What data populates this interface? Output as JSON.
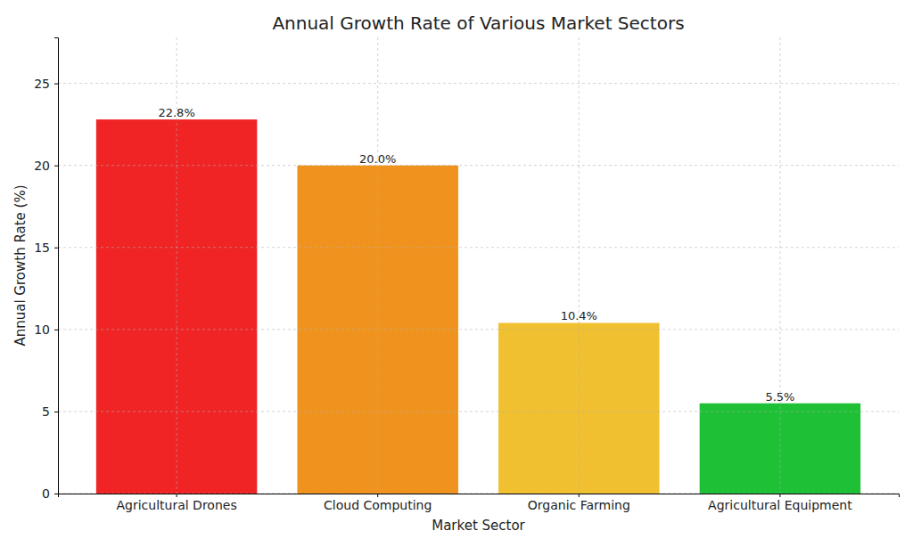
{
  "chart_data": {
    "type": "bar",
    "title": "Annual Growth Rate of Various Market Sectors",
    "x_label": "Market Sector",
    "y_label": "Annual Growth Rate (%)",
    "categories": [
      "Agricultural Drones",
      "Cloud Computing",
      "Organic Farming",
      "Agricultural Equipment"
    ],
    "values": [
      22.8,
      20.0,
      10.4,
      5.5
    ],
    "value_labels": [
      "22.8%",
      "20.0%",
      "10.4%",
      "5.5%"
    ],
    "colors": [
      "#f02424",
      "#f0931e",
      "#f0c030",
      "#1ec036"
    ],
    "ylim": [
      0,
      27.8
    ],
    "yticks": [
      0,
      5,
      10,
      15,
      20,
      25
    ],
    "grid": true,
    "data_labels": true
  }
}
